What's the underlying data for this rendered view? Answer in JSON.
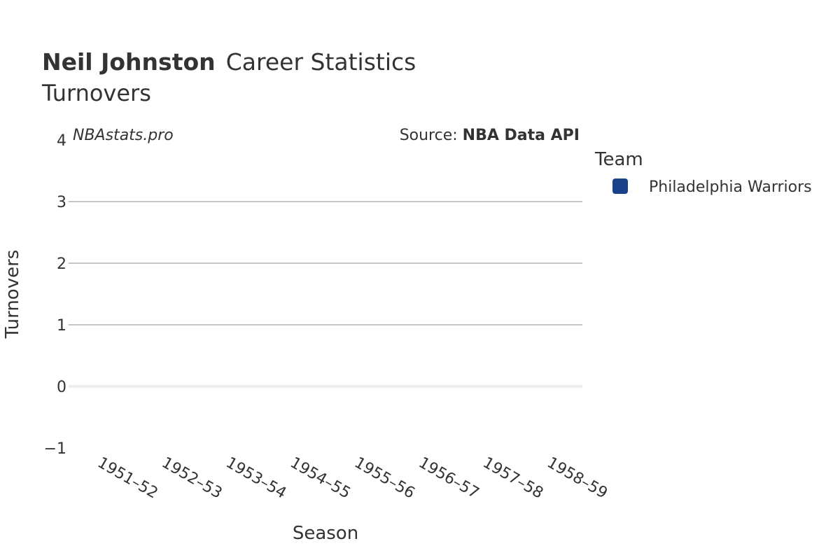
{
  "chart_data": {
    "type": "bar",
    "title_bold": "Neil Johnston",
    "title_rest": "Career Statistics",
    "subtitle": "Turnovers",
    "xlabel": "Season",
    "ylabel": "Turnovers",
    "categories": [
      "1951–52",
      "1952–53",
      "1953–54",
      "1954–55",
      "1955–56",
      "1956–57",
      "1957–58",
      "1958–59"
    ],
    "series": [
      {
        "name": "Philadelphia Warriors",
        "color": "#1a428a",
        "values": [
          null,
          null,
          null,
          null,
          null,
          null,
          null,
          null
        ]
      }
    ],
    "ylim": [
      -1,
      4
    ],
    "yticks": [
      -1,
      0,
      1,
      2,
      3,
      4
    ],
    "ytick_labels": [
      "−1",
      "0",
      "1",
      "2",
      "3",
      "4"
    ],
    "grid": true,
    "legend": {
      "title": "Team",
      "placement": "right"
    },
    "watermark": "NBAstats.pro",
    "source_prefix": "Source: ",
    "source_bold": "NBA Data API"
  }
}
